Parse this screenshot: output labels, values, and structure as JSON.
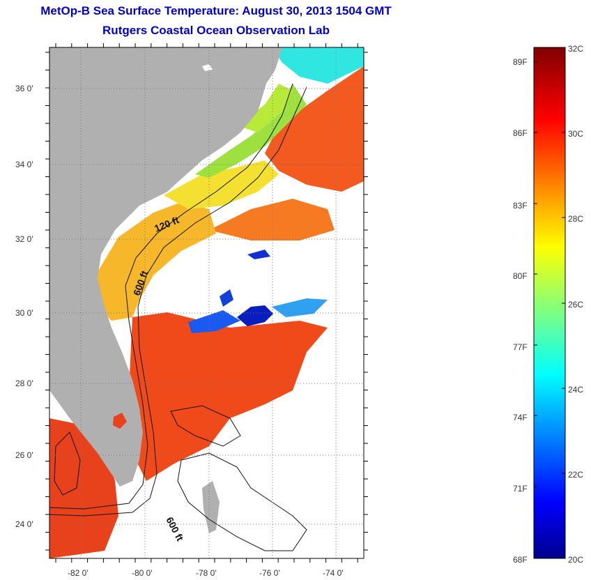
{
  "title": "MetOp-B Sea Surface Temperature:  August 30, 2013 1504 GMT",
  "subtitle": "Rutgers Coastal Ocean Observation Lab",
  "map": {
    "lat_ticks": [
      "36 0'",
      "34 0'",
      "32 0'",
      "30 0'",
      "28 0'",
      "26 0'",
      "24 0'"
    ],
    "lon_ticks": [
      "-82 0'",
      "-80 0'",
      "-78 0'",
      "-76 0'",
      "-74 0'"
    ],
    "contour_labels": [
      "120 ft",
      "600 ft",
      "600 ft"
    ],
    "colors": {
      "land": "#b0b0b0",
      "cloud": "#ffffff",
      "frame": "#000000"
    }
  },
  "colorbar": {
    "fahrenheit_labels": [
      "89F",
      "86F",
      "83F",
      "80F",
      "77F",
      "74F",
      "71F",
      "68F"
    ],
    "celsius_labels": [
      "32C",
      "30C",
      "28C",
      "26C",
      "24C",
      "22C",
      "20C"
    ],
    "range_c": [
      20,
      32
    ]
  }
}
